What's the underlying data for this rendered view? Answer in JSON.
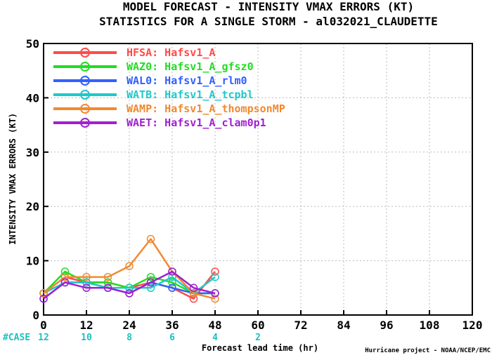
{
  "chart_data": {
    "type": "line",
    "title": "MODEL FORECAST - INTENSITY VMAX ERRORS (KT)",
    "subtitle": "STATISTICS FOR A SINGLE STORM - al032021_CLAUDETTE",
    "xlabel": "Forecast lead time (hr)",
    "ylabel": "INTENSITY VMAX ERRORS (KT)",
    "xlim": [
      0,
      120
    ],
    "ylim": [
      0,
      50
    ],
    "x_ticks": [
      "0",
      "12",
      "24",
      "36",
      "48",
      "60",
      "72",
      "84",
      "96",
      "108",
      "120"
    ],
    "y_ticks": [
      "0",
      "10",
      "20",
      "30",
      "40",
      "50"
    ],
    "grid": true,
    "legend_position": "top-left",
    "x": [
      0,
      6,
      12,
      18,
      24,
      30,
      36,
      42,
      48
    ],
    "series": [
      {
        "name": "HFSA: Hafsv1_A",
        "color": "#ff4a4a",
        "values": [
          4,
          7,
          6,
          6,
          5,
          6,
          5,
          3,
          8
        ]
      },
      {
        "name": "WAZ0: Hafsv1_A_gfsz0",
        "color": "#22dd22",
        "values": [
          4,
          8,
          6,
          6,
          5,
          7,
          6,
          4,
          4
        ]
      },
      {
        "name": "WAL0: Hafsv1_A_rlm0",
        "color": "#3060ff",
        "values": [
          3,
          6,
          6,
          5,
          4,
          6,
          5,
          4,
          4
        ]
      },
      {
        "name": "WATB: Hafsv1_A_tcpbl",
        "color": "#20c8c8",
        "values": [
          4,
          6,
          6,
          5,
          5,
          5,
          7,
          4,
          7
        ]
      },
      {
        "name": "WAMP: Hafsv1_A_thompsonMP",
        "color": "#f08a30",
        "values": [
          4,
          7,
          7,
          7,
          9,
          14,
          8,
          4,
          3
        ]
      },
      {
        "name": "WAET: Hafsv1_A_clam0p1",
        "color": "#a020d0",
        "values": [
          3,
          6,
          5,
          5,
          4,
          6,
          8,
          5,
          4
        ]
      }
    ],
    "cases": {
      "label": "#CASE",
      "x": [
        0,
        12,
        24,
        36,
        48,
        60
      ],
      "values": [
        "12",
        "10",
        "8",
        "6",
        "4",
        "2"
      ]
    }
  },
  "credit": "Hurricane project - NOAA/NCEP/EMC"
}
